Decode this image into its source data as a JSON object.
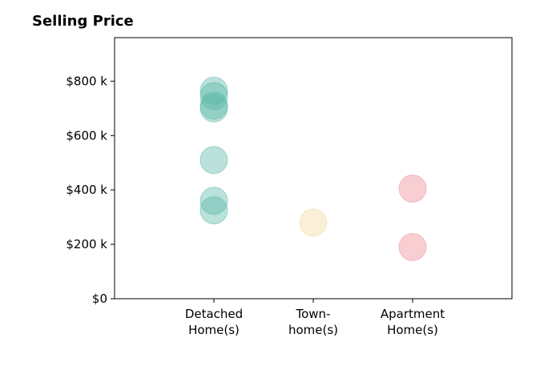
{
  "chart_data": {
    "type": "scatter",
    "title": "Selling Price",
    "xlabel": "",
    "ylabel": "",
    "categories": [
      [
        "Detached",
        "Home(s)"
      ],
      [
        "Town-",
        "home(s)"
      ],
      [
        "Apartment",
        "Home(s)"
      ]
    ],
    "x_range": [
      -1,
      3
    ],
    "ylim": [
      0,
      960
    ],
    "y_ticks": [
      {
        "value": 0,
        "label": "$0"
      },
      {
        "value": 200,
        "label": "$200 k"
      },
      {
        "value": 400,
        "label": "$400 k"
      },
      {
        "value": 600,
        "label": "$600 k"
      },
      {
        "value": 800,
        "label": "$800 k"
      }
    ],
    "grid": false,
    "colors": [
      "#5bb8a8",
      "#f3d9a0",
      "#ef8a95"
    ],
    "series": [
      {
        "category_index": 0,
        "values": [
          765,
          745,
          710,
          700,
          510,
          360,
          325
        ]
      },
      {
        "category_index": 1,
        "values": [
          280
        ]
      },
      {
        "category_index": 2,
        "values": [
          405,
          190
        ]
      }
    ]
  }
}
